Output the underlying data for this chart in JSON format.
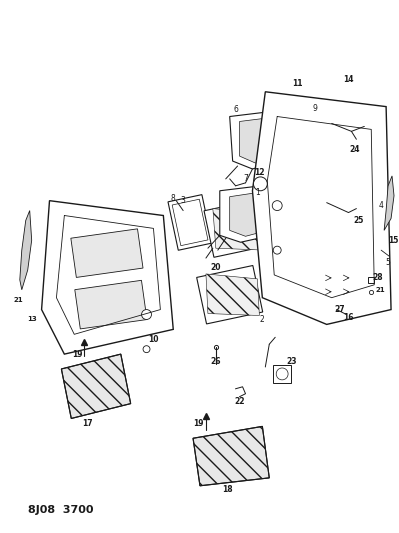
{
  "title": "8J08 3700",
  "bg_color": "#f5f5f5",
  "line_color": "#1a1a1a",
  "label_color": "#111111",
  "fig_width": 3.99,
  "fig_height": 5.33,
  "dpi": 100
}
